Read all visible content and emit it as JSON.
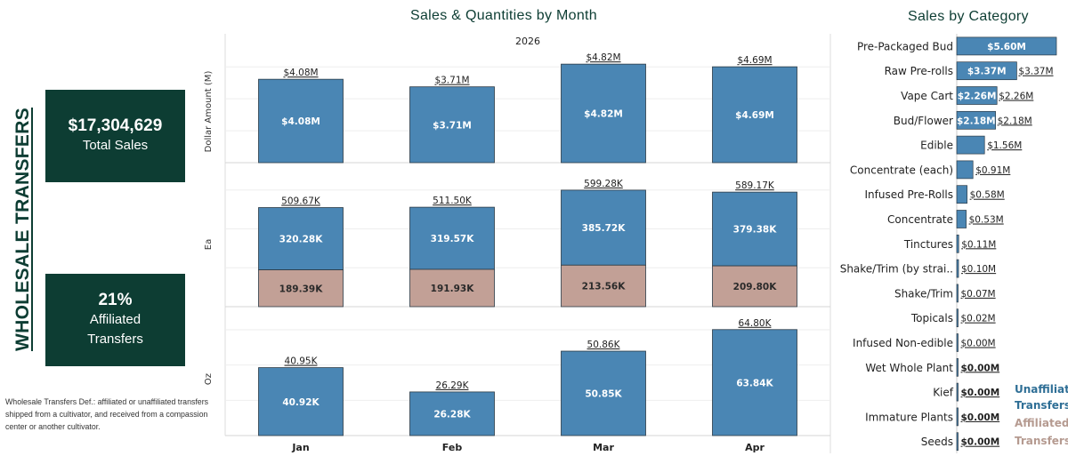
{
  "page": {
    "side_title": "WHOLESALE TRANSFERS",
    "kpis": {
      "total_sales": {
        "value": "$17,304,629",
        "label": "Total Sales"
      },
      "affiliated": {
        "value": "21%",
        "label_line1": "Affiliated",
        "label_line2": "Transfers"
      }
    },
    "definition": "Wholesale Transfers Def.:  affiliated or unaffiliated transfers shipped from a cultivator, and received from a compassion center or another cultivator."
  },
  "colors": {
    "brand_dark": "#0d3d33",
    "unaffiliated": "#4a86b4",
    "affiliated": "#c2a096",
    "bar_border": "#2b3a45"
  },
  "chart_data": [
    {
      "type": "bar",
      "title": "Sales & Quantities by Month",
      "column_header": "2026",
      "categories": [
        "Jan",
        "Feb",
        "Mar",
        "Apr"
      ],
      "panels": [
        {
          "row_label": "Dollar Amount (M)",
          "series": [
            {
              "name": "Unaffiliated Transfers",
              "values": [
                4.08,
                3.71,
                4.82,
                4.69
              ],
              "labels": [
                "$4.08M",
                "$3.71M",
                "$4.82M",
                "$4.69M"
              ]
            }
          ],
          "totals": [
            "$4.08M",
            "$3.71M",
            "$4.82M",
            "$4.69M"
          ]
        },
        {
          "row_label": "Ea",
          "series": [
            {
              "name": "Unaffiliated Transfers",
              "values": [
                320.28,
                319.57,
                385.72,
                379.38
              ],
              "labels": [
                "320.28K",
                "319.57K",
                "385.72K",
                "379.38K"
              ]
            },
            {
              "name": "Affiliated Transfers",
              "values": [
                189.39,
                191.93,
                213.56,
                209.8
              ],
              "labels": [
                "189.39K",
                "191.93K",
                "213.56K",
                "209.80K"
              ]
            }
          ],
          "totals": [
            "509.67K",
            "511.50K",
            "599.28K",
            "589.17K"
          ]
        },
        {
          "row_label": "Oz",
          "series": [
            {
              "name": "Unaffiliated Transfers",
              "values": [
                40.92,
                26.28,
                50.85,
                63.84
              ],
              "labels": [
                "40.92K",
                "26.28K",
                "50.85K",
                "63.84K"
              ]
            }
          ],
          "totals": [
            "40.95K",
            "26.29K",
            "50.86K",
            "64.80K"
          ]
        }
      ]
    },
    {
      "type": "bar",
      "orientation": "horizontal",
      "title": "Sales by Category",
      "categories": [
        "Pre-Packaged Bud",
        "Raw Pre-rolls",
        "Vape Cart",
        "Bud/Flower",
        "Edible",
        "Concentrate (each)",
        "Infused Pre-Rolls",
        "Concentrate",
        "Tinctures",
        "Shake/Trim (by strai..",
        "Shake/Trim",
        "Topicals",
        "Infused Non-edible",
        "Wet Whole Plant",
        "Kief",
        "Immature Plants",
        "Seeds"
      ],
      "values": [
        5.6,
        3.37,
        2.26,
        2.18,
        1.56,
        0.91,
        0.58,
        0.53,
        0.11,
        0.1,
        0.07,
        0.02,
        0.0,
        0.0,
        0.0,
        0.0,
        0.0
      ],
      "labels": [
        "$5.60M",
        "$3.37M",
        "$2.26M",
        "$2.18M",
        "$1.56M",
        "$0.91M",
        "$0.58M",
        "$0.53M",
        "$0.11M",
        "$0.10M",
        "$0.07M",
        "$0.02M",
        "$0.00M",
        "$0.00M",
        "$0.00M",
        "$0.00M",
        "$0.00M"
      ],
      "legend": [
        {
          "line1": "Unaffiliated",
          "line2": "Transfers",
          "color": "#2f6f96"
        },
        {
          "line1": "Affiliated",
          "line2": "Transfers",
          "color": "#b59a90"
        }
      ]
    }
  ]
}
